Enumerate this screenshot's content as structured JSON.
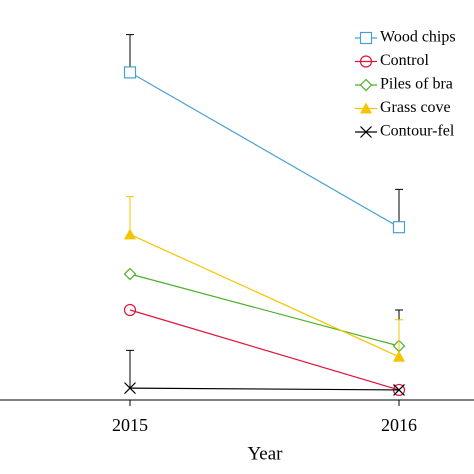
{
  "chart_data": {
    "type": "line",
    "x_label": "Year",
    "categories": [
      "2015",
      "2016"
    ],
    "ylim": [
      0,
      100
    ],
    "series": [
      {
        "name": "Wood chips",
        "color": "#4a9fd0",
        "marker": "square",
        "values": [
          91,
          48
        ],
        "errors": [
          10.5,
          10.5
        ],
        "error_color": "#000000"
      },
      {
        "name": "Control",
        "color": "#e0143c",
        "marker": "circle",
        "values": [
          25,
          2.8
        ],
        "errors": [
          null,
          null
        ],
        "error_color": "#000000"
      },
      {
        "name": "Piles of bra",
        "color": "#4caf2a",
        "marker": "diamond",
        "values": [
          35,
          15
        ],
        "errors": [
          null,
          10
        ],
        "error_color": "#000000"
      },
      {
        "name": "Grass cove",
        "color": "#f5c400",
        "marker": "triangle",
        "values": [
          46,
          12
        ],
        "errors": [
          10.5,
          10.3
        ],
        "error_color": "#f5c400"
      },
      {
        "name": "Contour-fel",
        "color": "#000000",
        "marker": "x",
        "values": [
          3.3,
          2.8
        ],
        "errors": [
          10.5,
          null
        ],
        "error_color": "#000000"
      }
    ]
  }
}
